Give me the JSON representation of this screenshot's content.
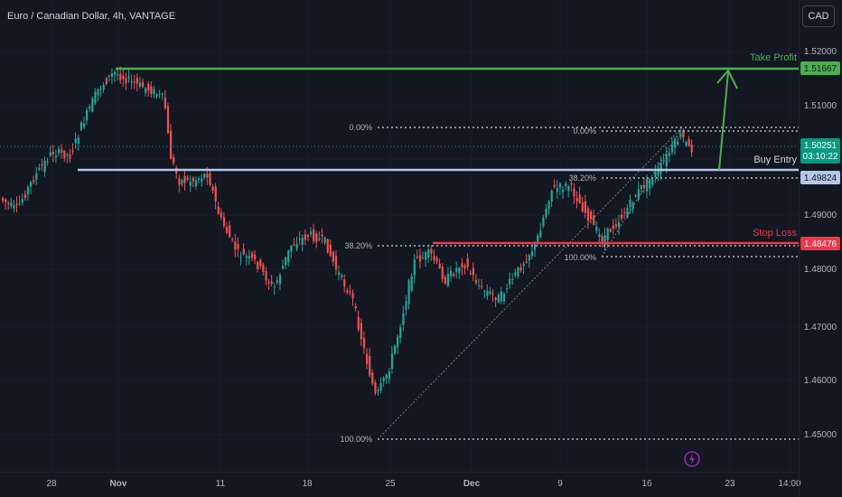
{
  "header": {
    "symbol_title": "Euro / Canadian Dollar, 4h, VANTAGE"
  },
  "currency_button": {
    "label": "CAD"
  },
  "price_axis": {
    "ticks": [
      "1.52000",
      "1.51000",
      "1.50000",
      "1.49000",
      "1.48000",
      "1.47000",
      "1.46000",
      "1.45000"
    ]
  },
  "time_axis": {
    "ticks": [
      "28",
      "Nov",
      "11",
      "18",
      "25",
      "Dec",
      "9",
      "16",
      "23",
      "14:00"
    ]
  },
  "levels": {
    "take_profit": {
      "label": "Take Profit",
      "price": "1.51667",
      "color": "#4caf50"
    },
    "buy_entry": {
      "label": "Buy Entry",
      "price": "1.49824",
      "color": "#b2c8e6"
    },
    "stop_loss": {
      "label": "Stop Loss",
      "price": "1.48476",
      "color": "#f23645"
    }
  },
  "current_price": {
    "price": "1.50251",
    "countdown": "03:10:22",
    "color": "#089981"
  },
  "fib_large": {
    "top": "0.00%",
    "mid": "38.20%",
    "bottom": "100.00%"
  },
  "fib_small": {
    "top": "0.00%",
    "mid": "38.20%",
    "bottom": "100.00%"
  },
  "colors": {
    "up": "#26a69a",
    "down": "#ef5350",
    "background": "#131722"
  }
}
